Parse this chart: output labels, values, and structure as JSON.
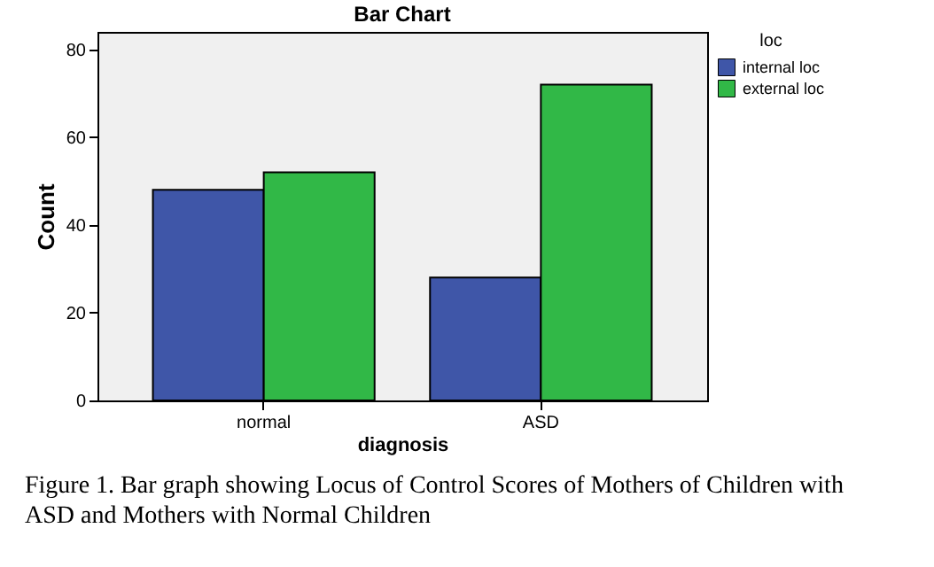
{
  "chart_data": {
    "type": "bar",
    "title": "Bar Chart",
    "xlabel": "diagnosis",
    "ylabel": "Count",
    "legend_title": "loc",
    "categories": [
      "normal",
      "ASD"
    ],
    "series": [
      {
        "name": "internal loc",
        "color": "#3f56a8",
        "values": [
          48,
          28
        ]
      },
      {
        "name": "external loc",
        "color": "#31b847",
        "values": [
          52,
          72
        ]
      }
    ],
    "ylim": [
      0,
      84
    ],
    "yticks": [
      0,
      20,
      40,
      60,
      80
    ],
    "grid": false,
    "legend": "top right",
    "annotations": [
      "Figure 1. Bar graph showing Locus of Control Scores of Mothers of Children with ASD and Mothers with Normal Children"
    ]
  }
}
